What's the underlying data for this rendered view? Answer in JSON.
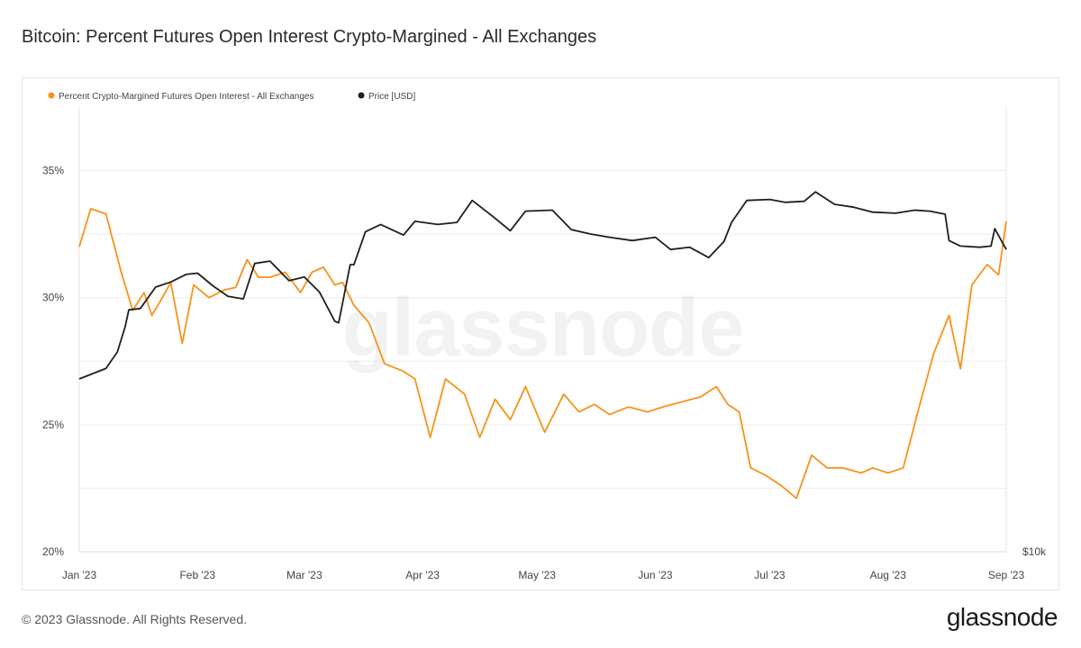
{
  "title": "Bitcoin: Percent Futures Open Interest Crypto-Margined - All Exchanges",
  "footer": {
    "copyright": "© 2023 Glassnode. All Rights Reserved.",
    "brand": "glassnode"
  },
  "watermark": "glassnode",
  "colors": {
    "oi_series": "#f7931a",
    "price_series": "#1f1f1f",
    "grid": "#eeeeee",
    "axis_text": "#444444"
  },
  "chart_data": {
    "type": "line",
    "title": "Bitcoin: Percent Futures Open Interest Crypto-Margined - All Exchanges",
    "legend": [
      {
        "name": "Percent Crypto-Margined Futures Open Interest - All Exchanges",
        "color": "#f7931a"
      },
      {
        "name": "Price [USD]",
        "color": "#1f1f1f"
      }
    ],
    "legend_position": "top-left",
    "grid": true,
    "x_ticks": [
      "Jan '23",
      "Feb '23",
      "Mar '23",
      "Apr '23",
      "May '23",
      "Jun '23",
      "Jul '23",
      "Aug '23",
      "Sep '23"
    ],
    "y_left": {
      "ticks": [
        "20%",
        "25%",
        "30%",
        "35%"
      ],
      "range": [
        20,
        37.5
      ],
      "unit": "%"
    },
    "y_right": {
      "ticks": [
        "$10k"
      ],
      "scale": "log"
    },
    "series": [
      {
        "name": "Percent Crypto-Margined Futures Open Interest - All Exchanges",
        "axis": "left",
        "x": [
          "2023-01-01",
          "2023-01-04",
          "2023-01-08",
          "2023-01-12",
          "2023-01-15",
          "2023-01-18",
          "2023-01-20",
          "2023-01-22",
          "2023-01-25",
          "2023-01-28",
          "2023-01-31",
          "2023-02-04",
          "2023-02-08",
          "2023-02-11",
          "2023-02-14",
          "2023-02-17",
          "2023-02-20",
          "2023-02-24",
          "2023-02-28",
          "2023-03-03",
          "2023-03-06",
          "2023-03-09",
          "2023-03-11",
          "2023-03-14",
          "2023-03-18",
          "2023-03-22",
          "2023-03-27",
          "2023-03-30",
          "2023-04-03",
          "2023-04-07",
          "2023-04-12",
          "2023-04-16",
          "2023-04-20",
          "2023-04-24",
          "2023-04-28",
          "2023-05-03",
          "2023-05-08",
          "2023-05-12",
          "2023-05-16",
          "2023-05-20",
          "2023-05-25",
          "2023-05-30",
          "2023-06-03",
          "2023-06-08",
          "2023-06-13",
          "2023-06-17",
          "2023-06-20",
          "2023-06-23",
          "2023-06-26",
          "2023-06-30",
          "2023-07-04",
          "2023-07-08",
          "2023-07-12",
          "2023-07-16",
          "2023-07-20",
          "2023-07-25",
          "2023-07-28",
          "2023-08-01",
          "2023-08-05",
          "2023-08-09",
          "2023-08-13",
          "2023-08-17",
          "2023-08-20",
          "2023-08-23",
          "2023-08-27",
          "2023-08-30",
          "2023-09-01"
        ],
        "y": [
          32.0,
          33.5,
          33.3,
          31.0,
          29.5,
          30.2,
          29.3,
          29.8,
          30.6,
          28.2,
          30.5,
          30.0,
          30.3,
          30.4,
          31.5,
          30.8,
          30.8,
          31.0,
          30.2,
          31.0,
          31.2,
          30.5,
          30.6,
          29.7,
          29.0,
          27.4,
          27.1,
          26.8,
          24.5,
          26.8,
          26.2,
          24.5,
          26.0,
          25.2,
          26.5,
          24.7,
          26.2,
          25.5,
          25.8,
          25.4,
          25.7,
          25.5,
          25.7,
          25.9,
          26.1,
          26.5,
          25.8,
          25.5,
          23.3,
          23.0,
          22.6,
          22.1,
          23.8,
          23.3,
          23.3,
          23.1,
          23.3,
          23.1,
          23.3,
          25.6,
          27.8,
          29.3,
          27.2,
          30.5,
          31.3,
          30.9,
          33.0
        ]
      },
      {
        "name": "Price [USD]",
        "axis": "right",
        "x": [
          "2023-01-01",
          "2023-01-08",
          "2023-01-11",
          "2023-01-13",
          "2023-01-14",
          "2023-01-17",
          "2023-01-21",
          "2023-01-25",
          "2023-01-29",
          "2023-02-01",
          "2023-02-05",
          "2023-02-09",
          "2023-02-13",
          "2023-02-16",
          "2023-02-20",
          "2023-02-25",
          "2023-03-01",
          "2023-03-05",
          "2023-03-09",
          "2023-03-10",
          "2023-03-13",
          "2023-03-14",
          "2023-03-17",
          "2023-03-21",
          "2023-03-27",
          "2023-03-30",
          "2023-04-05",
          "2023-04-10",
          "2023-04-14",
          "2023-04-19",
          "2023-04-24",
          "2023-04-28",
          "2023-05-05",
          "2023-05-10",
          "2023-05-15",
          "2023-05-20",
          "2023-05-26",
          "2023-06-01",
          "2023-06-05",
          "2023-06-10",
          "2023-06-15",
          "2023-06-19",
          "2023-06-21",
          "2023-06-25",
          "2023-07-01",
          "2023-07-05",
          "2023-07-10",
          "2023-07-13",
          "2023-07-18",
          "2023-07-23",
          "2023-07-28",
          "2023-08-03",
          "2023-08-08",
          "2023-08-12",
          "2023-08-16",
          "2023-08-17",
          "2023-08-20",
          "2023-08-25",
          "2023-08-28",
          "2023-08-29",
          "2023-09-01"
        ],
        "y": [
          16600,
          17200,
          18200,
          19800,
          21000,
          21100,
          22700,
          23100,
          23700,
          23800,
          22800,
          22000,
          21800,
          24600,
          24800,
          23200,
          23500,
          22300,
          20200,
          20100,
          24500,
          24500,
          27400,
          28100,
          27100,
          28400,
          28100,
          28300,
          30500,
          29000,
          27500,
          29400,
          29500,
          27600,
          27200,
          26900,
          26600,
          26900,
          25800,
          26000,
          25100,
          26500,
          28300,
          30500,
          30600,
          30300,
          30400,
          31400,
          30100,
          29800,
          29300,
          29200,
          29500,
          29400,
          29100,
          26600,
          26100,
          26000,
          26100,
          27700,
          25800
        ]
      }
    ]
  }
}
